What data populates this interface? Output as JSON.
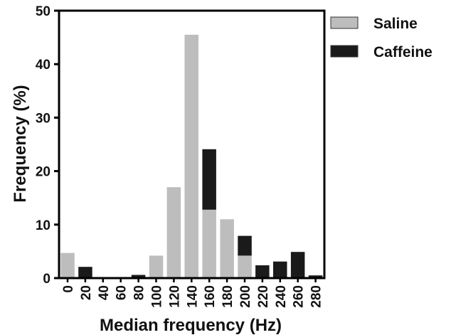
{
  "chart_data": {
    "type": "bar",
    "stacked": true,
    "categories": [
      "0",
      "20",
      "40",
      "60",
      "80",
      "100",
      "120",
      "140",
      "160",
      "180",
      "200",
      "220",
      "240",
      "260",
      "280"
    ],
    "series": [
      {
        "name": "Saline",
        "color": "#bdbdbd",
        "values": [
          4.7,
          0,
          0,
          0,
          0,
          4.2,
          17,
          45.5,
          12.8,
          11,
          4.2,
          0,
          0,
          0,
          0
        ]
      },
      {
        "name": "Caffeine",
        "color": "#1a1a1a",
        "values": [
          0,
          2.1,
          0,
          0,
          0.6,
          0,
          0,
          0,
          11.3,
          0,
          3.7,
          2.4,
          3.1,
          4.9,
          0.5
        ]
      }
    ],
    "xlabel": "Median frequency (Hz)",
    "ylabel": "Frequency (%)",
    "ylim": [
      0,
      50
    ],
    "yticks": [
      "0",
      "10",
      "20",
      "30",
      "40",
      "50"
    ],
    "legend_position": "top-right",
    "grid": false
  }
}
